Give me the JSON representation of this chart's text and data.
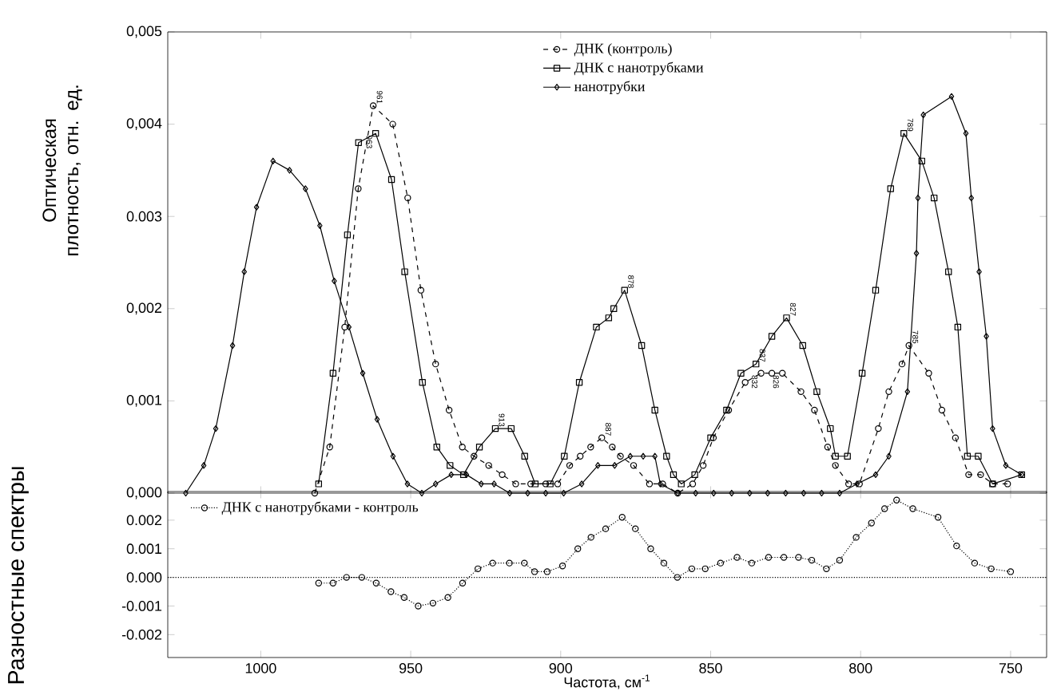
{
  "chart_data": [
    {
      "type": "line",
      "ylabel": "Оптическая плотность, отн. ед.",
      "xlim": [
        1031,
        738
      ],
      "xticks": [
        1000,
        950,
        900,
        850,
        800,
        750
      ],
      "ylim": [
        0,
        0.005
      ],
      "yticks": [
        {
          "value": 0,
          "label": "0,000"
        },
        {
          "value": 0.001,
          "label": "0,001"
        },
        {
          "value": 0.002,
          "label": "0,002"
        },
        {
          "value": 0.003,
          "label": "0.003"
        },
        {
          "value": 0.004,
          "label": "0,004"
        },
        {
          "value": 0.005,
          "label": "0,005"
        }
      ],
      "tick_labels": "y",
      "legend": "top",
      "series": [
        {
          "name": "ДНК (контроль)",
          "color": "#000000",
          "marker": "circle",
          "line_style": "dashed",
          "x": [
            982,
            977,
            972,
            967.5,
            962.5,
            956,
            951,
            946.6,
            941.7,
            937.2,
            932.8,
            928.9,
            924,
            919.5,
            915,
            910,
            905,
            901,
            897,
            893.5,
            890,
            886.3,
            882.8,
            880.1,
            875.7,
            870.4,
            866,
            861,
            856,
            852.5,
            849.1,
            844,
            838.5,
            833.2,
            829.6,
            826.1,
            819.9,
            815.4,
            811,
            808.4,
            804,
            800.4,
            794.1,
            790.6,
            786.2,
            783.9,
            777.3,
            772.9,
            768.4,
            764,
            760,
            756,
            751
          ],
          "values": [
            0.0,
            0.0005,
            0.0018,
            0.0033,
            0.0042,
            0.004,
            0.0032,
            0.0022,
            0.0014,
            0.0009,
            0.0005,
            0.0004,
            0.0003,
            0.0002,
            0.0001,
            0.0001,
            0.0001,
            0.0001,
            0.0003,
            0.0004,
            0.0005,
            0.0006,
            0.0005,
            0.0004,
            0.0003,
            0.0001,
            0.0001,
            0.0,
            0.0001,
            0.0003,
            0.0006,
            0.0009,
            0.0012,
            0.0013,
            0.0013,
            0.0013,
            0.0011,
            0.0009,
            0.0005,
            0.0003,
            0.0001,
            0.0001,
            0.0007,
            0.0011,
            0.0014,
            0.0016,
            0.0013,
            0.0009,
            0.0006,
            0.0002,
            0.0002,
            0.0001,
            0.0001
          ]
        },
        {
          "name": "ДНК с нанотрубками",
          "color": "#000000",
          "marker": "square",
          "line_style": "solid",
          "x": [
            980.7,
            975.9,
            971.1,
            967.4,
            961.7,
            956.4,
            952,
            946.1,
            941.3,
            936.9,
            932.4,
            927.1,
            921.8,
            916.5,
            912,
            908.5,
            903.5,
            898.8,
            893.8,
            888.1,
            884,
            882.3,
            878.7,
            873,
            868.6,
            864.7,
            862.4,
            859.8,
            855.3,
            850,
            844.7,
            839.9,
            834.9,
            829.6,
            824.7,
            819.3,
            814.6,
            810.1,
            808.4,
            804.4,
            799.5,
            795,
            790,
            785.6,
            779.6,
            775.5,
            770.7,
            767.6,
            764.4,
            760.8,
            756,
            746.3
          ],
          "values": [
            0.0001,
            0.0013,
            0.0028,
            0.0038,
            0.0039,
            0.0034,
            0.0024,
            0.0012,
            0.0005,
            0.0003,
            0.0002,
            0.0005,
            0.0007,
            0.0007,
            0.0004,
            0.0001,
            0.0001,
            0.0004,
            0.0012,
            0.0018,
            0.0019,
            0.002,
            0.0022,
            0.0016,
            0.0009,
            0.0004,
            0.0002,
            0.0001,
            0.0002,
            0.0006,
            0.0009,
            0.0013,
            0.0014,
            0.0017,
            0.0019,
            0.0016,
            0.0011,
            0.0007,
            0.0004,
            0.0004,
            0.0013,
            0.0022,
            0.0033,
            0.0039,
            0.0036,
            0.0032,
            0.0024,
            0.0018,
            0.0004,
            0.0004,
            0.0001,
            0.0002
          ]
        },
        {
          "name": "нанотрубки",
          "color": "#000000",
          "marker": "diamond",
          "line_style": "solid",
          "x": [
            1025,
            1019,
            1015,
            1009.4,
            1005.5,
            1001.4,
            995.9,
            990.4,
            985.1,
            980.3,
            975.5,
            970.6,
            966,
            961.2,
            955.9,
            951.1,
            946.3,
            941.7,
            936.5,
            931.4,
            926.5,
            922.2,
            917,
            911,
            905,
            899,
            893,
            887.6,
            882,
            876.8,
            872.5,
            868.6,
            866.8,
            861,
            855,
            849,
            843,
            837,
            831,
            825,
            819,
            813,
            807,
            801.2,
            795,
            790.6,
            784.4,
            781.4,
            780.9,
            779.1,
            769.7,
            764.9,
            763.1,
            760.5,
            758.1,
            756,
            751.6,
            746.3
          ],
          "values": [
            0.0,
            0.0003,
            0.0007,
            0.0016,
            0.0024,
            0.0031,
            0.0036,
            0.0035,
            0.0033,
            0.0029,
            0.0023,
            0.0018,
            0.0013,
            0.0008,
            0.0004,
            0.0001,
            0.0,
            0.0001,
            0.0002,
            0.0002,
            0.0001,
            0.0001,
            0.0,
            0.0,
            0.0,
            0.0,
            0.0001,
            0.0003,
            0.0003,
            0.0004,
            0.0004,
            0.0004,
            0.0001,
            0.0,
            0.0,
            0.0,
            0.0,
            0.0,
            0.0,
            0.0,
            0.0,
            0.0,
            0.0,
            0.0001,
            0.0002,
            0.0004,
            0.0011,
            0.0026,
            0.0032,
            0.0041,
            0.0043,
            0.0039,
            0.0032,
            0.0024,
            0.0017,
            0.0007,
            0.0003,
            0.0002
          ]
        }
      ],
      "annotations": [
        {
          "text": "961",
          "x": 962.5,
          "y": 0.0042
        },
        {
          "text": "963",
          "x": 961.7,
          "y": 0.0039
        },
        {
          "text": "913",
          "x": 921.8,
          "y": 0.0007
        },
        {
          "text": "878",
          "x": 878.7,
          "y": 0.0022
        },
        {
          "text": "887",
          "x": 886.3,
          "y": 0.0006
        },
        {
          "text": "837",
          "x": 834.9,
          "y": 0.0014
        },
        {
          "text": "827",
          "x": 824.7,
          "y": 0.0019
        },
        {
          "text": "832",
          "x": 833.2,
          "y": 0.0013
        },
        {
          "text": "826",
          "x": 826.1,
          "y": 0.0013
        },
        {
          "text": "789",
          "x": 785.6,
          "y": 0.0039
        },
        {
          "text": "785",
          "x": 783.9,
          "y": 0.0016
        }
      ]
    },
    {
      "type": "line",
      "ylabel": "Разностные спектры",
      "xlabel": "Частота, см$^{-1}$",
      "xlim": [
        1031,
        738
      ],
      "xticks": [
        1000,
        950,
        900,
        850,
        800,
        750
      ],
      "ylim": [
        -0.0028,
        0.003
      ],
      "yticks": [
        {
          "value": -0.002,
          "label": "-0.002"
        },
        {
          "value": -0.001,
          "label": "-0.001"
        },
        {
          "value": 0,
          "label": "0.000"
        },
        {
          "value": 0.001,
          "label": "0.001"
        },
        {
          "value": 0.002,
          "label": "0.002"
        }
      ],
      "legend": "top left",
      "ref_lines": [
        {
          "axis": "y",
          "value": 0,
          "line_style": "dotted"
        }
      ],
      "series": [
        {
          "name": "ДНК с нанотрубками - контроль",
          "color": "#000000",
          "marker": "circle",
          "line_style": "dotted",
          "x": [
            980.7,
            975.9,
            971.4,
            966.3,
            961.5,
            956.6,
            952.2,
            947.5,
            942.6,
            937.6,
            932.7,
            927.6,
            922.7,
            917.1,
            912.1,
            908.7,
            904.5,
            899.4,
            894.3,
            889.9,
            885,
            879.5,
            875.1,
            870,
            865.6,
            861.1,
            856.3,
            851.8,
            846.7,
            841.2,
            836.3,
            830.7,
            825.6,
            820.7,
            816.3,
            811.4,
            807,
            801.5,
            796.4,
            792,
            788,
            782.6,
            774.2,
            768,
            762,
            756.5,
            750
          ],
          "values": [
            -0.0002,
            -0.0002,
            0.0,
            0.0,
            -0.0002,
            -0.0005,
            -0.0007,
            -0.001,
            -0.0009,
            -0.0007,
            -0.0002,
            0.0003,
            0.0005,
            0.0005,
            0.0005,
            0.0002,
            0.0002,
            0.0004,
            0.001,
            0.0014,
            0.0017,
            0.0021,
            0.0017,
            0.001,
            0.0005,
            0.0,
            0.0003,
            0.0003,
            0.0005,
            0.0007,
            0.0005,
            0.0007,
            0.0007,
            0.0007,
            0.0006,
            0.0003,
            0.0006,
            0.0014,
            0.0019,
            0.0024,
            0.0027,
            0.0024,
            0.0021,
            0.0011,
            0.0005,
            0.0003,
            0.0002
          ]
        }
      ]
    }
  ]
}
